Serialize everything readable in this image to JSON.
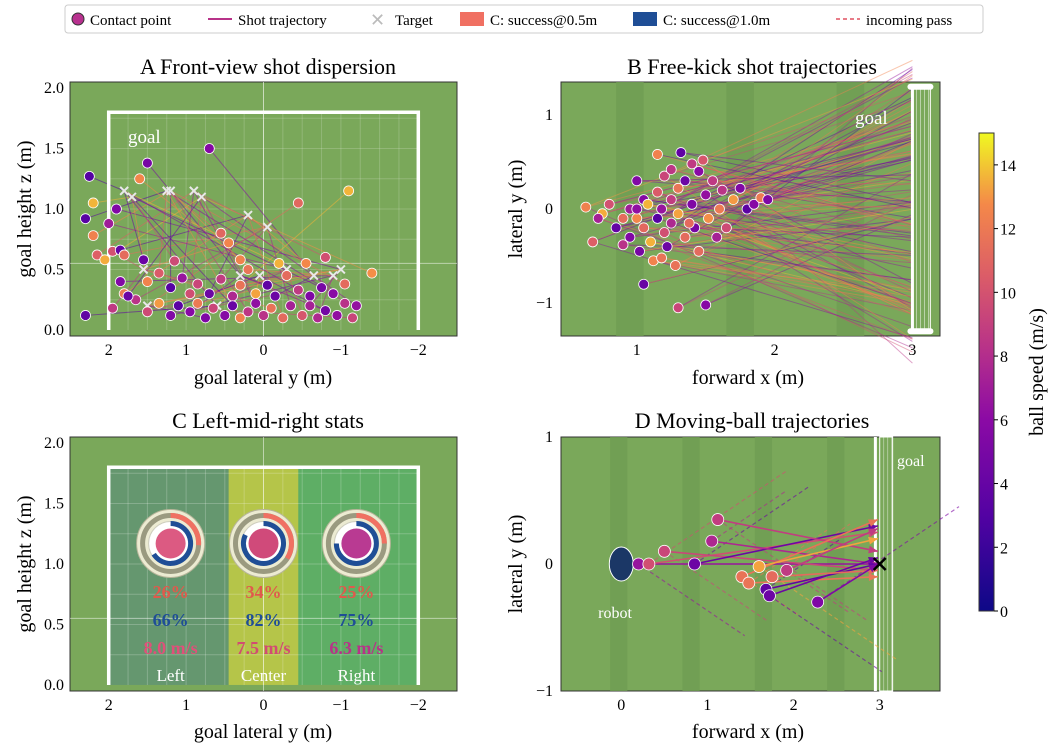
{
  "legend": {
    "contact": "Contact point",
    "traj": "Shot trajectory",
    "target": "Target",
    "s05": "C: success@0.5m",
    "s10": "C: success@1.0m",
    "incoming": "incoming pass"
  },
  "colorbar": {
    "label": "ball speed (m/s)",
    "ticks": [
      "0",
      "2",
      "4",
      "6",
      "8",
      "10",
      "12",
      "14"
    ],
    "range": [
      0,
      15
    ]
  },
  "panels": {
    "a": {
      "title": "A  Front-view shot dispersion",
      "xlabel": "goal lateral y (m)",
      "ylabel": "goal height z (m)",
      "xticks": [
        "2",
        "1",
        "0",
        "−1",
        "−2"
      ],
      "yticks": [
        "0.0",
        "0.5",
        "1.0",
        "1.5",
        "2.0"
      ],
      "goal_label": "goal"
    },
    "b": {
      "title": "B  Free-kick shot trajectories",
      "xlabel": "forward x (m)",
      "ylabel": "lateral y (m)",
      "xticks": [
        "1",
        "2",
        "3"
      ],
      "yticks": [
        "−1",
        "0",
        "1"
      ],
      "goal_label": "goal"
    },
    "c": {
      "title": "C  Left-mid-right stats",
      "xlabel": "goal lateral y (m)",
      "ylabel": "goal height z (m)",
      "xticks": [
        "2",
        "1",
        "0",
        "−1",
        "−2"
      ],
      "yticks": [
        "0.0",
        "0.5",
        "1.0",
        "1.5",
        "2.0"
      ]
    },
    "d": {
      "title": "D  Moving-ball trajectories",
      "xlabel": "forward x (m)",
      "ylabel": "lateral y (m)",
      "xticks": [
        "0",
        "1",
        "2",
        "3"
      ],
      "yticks": [
        "−1",
        "0",
        "1"
      ],
      "goal_label": "goal",
      "robot_label": "robot"
    }
  },
  "chart_data": [
    {
      "panel": "C",
      "type": "bar",
      "title": "C  Left-mid-right stats",
      "categories": [
        "Left",
        "Center",
        "Right"
      ],
      "series": [
        {
          "name": "C: success@0.5m",
          "values": [
            "26%",
            "34%",
            "25%"
          ],
          "numeric": [
            26,
            34,
            25
          ],
          "color": "#f07062"
        },
        {
          "name": "C: success@1.0m",
          "values": [
            "66%",
            "82%",
            "75%"
          ],
          "numeric": [
            66,
            82,
            75
          ],
          "color": "#1f4e96"
        }
      ],
      "speeds": [
        "8.0 m/s",
        "7.5 m/s",
        "6.3 m/s"
      ],
      "speed_values": [
        8.0,
        7.5,
        6.3
      ],
      "region_colors": [
        "#5f9277",
        "#c9cf44",
        "#55b06a"
      ]
    },
    {
      "panel": "A",
      "type": "scatter",
      "title": "A  Front-view shot dispersion",
      "xlabel": "goal lateral y (m)",
      "ylabel": "goal height z (m)",
      "xlim": [
        2.5,
        -2.5
      ],
      "ylim": [
        -0.05,
        2.05
      ],
      "goal": {
        "y": [
          2.0,
          -2.0
        ],
        "z_top": 1.8
      },
      "targets": [
        [
          1.8,
          1.15
        ],
        [
          1.7,
          1.1
        ],
        [
          1.25,
          1.15
        ],
        [
          1.2,
          1.15
        ],
        [
          0.9,
          1.15
        ],
        [
          0.8,
          1.1
        ],
        [
          1.55,
          0.5
        ],
        [
          0.2,
          0.95
        ],
        [
          -0.05,
          0.85
        ],
        [
          -0.3,
          0.5
        ],
        [
          -1.0,
          0.5
        ],
        [
          -0.9,
          0.45
        ],
        [
          0.05,
          0.45
        ],
        [
          0.3,
          0.45
        ],
        [
          -0.65,
          0.45
        ],
        [
          1.5,
          0.2
        ],
        [
          0.6,
          0.2
        ]
      ],
      "contacts": [
        [
          2.25,
          1.27
        ],
        [
          2.2,
          1.05
        ],
        [
          2.3,
          0.92
        ],
        [
          2.2,
          0.78
        ],
        [
          2.15,
          0.62
        ],
        [
          2.05,
          0.58
        ],
        [
          1.95,
          0.65
        ],
        [
          1.85,
          0.66
        ],
        [
          1.8,
          0.62
        ],
        [
          2.0,
          0.88
        ],
        [
          1.9,
          1.0
        ],
        [
          1.85,
          0.4
        ],
        [
          1.6,
          1.25
        ],
        [
          1.5,
          1.38
        ],
        [
          0.7,
          1.5
        ],
        [
          -0.45,
          1.05
        ],
        [
          -1.1,
          1.15
        ],
        [
          -0.2,
          0.55
        ],
        [
          1.5,
          0.4
        ],
        [
          1.35,
          0.47
        ],
        [
          1.2,
          0.35
        ],
        [
          1.05,
          0.43
        ],
        [
          0.95,
          0.3
        ],
        [
          0.85,
          0.38
        ],
        [
          0.7,
          0.3
        ],
        [
          0.55,
          0.42
        ],
        [
          0.4,
          0.28
        ],
        [
          0.3,
          0.37
        ],
        [
          0.2,
          0.5
        ],
        [
          0.1,
          0.3
        ],
        [
          -0.05,
          0.37
        ],
        [
          -0.15,
          0.28
        ],
        [
          -0.3,
          0.45
        ],
        [
          -0.45,
          0.33
        ],
        [
          -0.6,
          0.28
        ],
        [
          -0.75,
          0.35
        ],
        [
          -0.9,
          0.3
        ],
        [
          -1.05,
          0.38
        ],
        [
          -1.2,
          0.2
        ],
        [
          -1.4,
          0.47
        ],
        [
          1.95,
          0.18
        ],
        [
          1.8,
          0.3
        ],
        [
          1.65,
          0.25
        ],
        [
          1.5,
          0.15
        ],
        [
          1.35,
          0.22
        ],
        [
          1.2,
          0.12
        ],
        [
          1.1,
          0.2
        ],
        [
          0.95,
          0.15
        ],
        [
          0.85,
          0.22
        ],
        [
          0.75,
          0.1
        ],
        [
          0.65,
          0.18
        ],
        [
          0.5,
          0.12
        ],
        [
          0.4,
          0.2
        ],
        [
          0.3,
          0.1
        ],
        [
          0.2,
          0.15
        ],
        [
          0.1,
          0.22
        ],
        [
          0.0,
          0.12
        ],
        [
          -0.1,
          0.18
        ],
        [
          -0.25,
          0.1
        ],
        [
          -0.35,
          0.2
        ],
        [
          -0.5,
          0.12
        ],
        [
          -0.6,
          0.2
        ],
        [
          -0.7,
          0.1
        ],
        [
          -0.8,
          0.16
        ],
        [
          -0.95,
          0.12
        ],
        [
          -1.05,
          0.22
        ],
        [
          -1.15,
          0.1
        ],
        [
          2.3,
          0.12
        ],
        [
          1.55,
          0.58
        ],
        [
          1.15,
          0.57
        ],
        [
          0.55,
          0.8
        ],
        [
          0.3,
          0.58
        ],
        [
          -0.8,
          0.6
        ],
        [
          1.75,
          0.28
        ],
        [
          0.45,
          0.72
        ],
        [
          -0.55,
          0.55
        ]
      ]
    },
    {
      "panel": "B",
      "type": "line",
      "title": "B  Free-kick shot trajectories",
      "xlabel": "forward x (m)",
      "ylabel": "lateral y (m)",
      "xlim": [
        0.45,
        3.2
      ],
      "ylim": [
        -1.35,
        1.35
      ],
      "goal": {
        "x": 3.0,
        "y": [
          -1.3,
          1.3
        ]
      },
      "contacts": [
        [
          0.63,
          0.02
        ],
        [
          0.68,
          -0.35
        ],
        [
          0.75,
          -0.05
        ],
        [
          0.8,
          0.05
        ],
        [
          0.85,
          -0.2
        ],
        [
          0.9,
          -0.1
        ],
        [
          0.95,
          0.0
        ],
        [
          0.95,
          -0.3
        ],
        [
          1.0,
          0.3
        ],
        [
          1.0,
          -0.1
        ],
        [
          1.02,
          -0.45
        ],
        [
          1.05,
          0.1
        ],
        [
          1.05,
          -0.2
        ],
        [
          1.08,
          0.05
        ],
        [
          1.1,
          -0.35
        ],
        [
          1.12,
          -0.55
        ],
        [
          1.15,
          0.18
        ],
        [
          1.15,
          -0.1
        ],
        [
          1.18,
          0.0
        ],
        [
          1.2,
          -0.25
        ],
        [
          1.2,
          0.35
        ],
        [
          1.22,
          -0.4
        ],
        [
          1.25,
          0.1
        ],
        [
          1.25,
          -0.15
        ],
        [
          1.28,
          -0.6
        ],
        [
          1.3,
          0.22
        ],
        [
          1.3,
          -0.05
        ],
        [
          1.32,
          0.6
        ],
        [
          1.35,
          0.3
        ],
        [
          1.35,
          -0.3
        ],
        [
          1.4,
          0.48
        ],
        [
          1.4,
          0.05
        ],
        [
          1.42,
          -0.2
        ],
        [
          1.45,
          0.4
        ],
        [
          1.45,
          -0.45
        ],
        [
          1.5,
          0.15
        ],
        [
          1.52,
          -0.1
        ],
        [
          1.55,
          0.3
        ],
        [
          1.6,
          0.0
        ],
        [
          1.62,
          0.2
        ],
        [
          1.65,
          -0.2
        ],
        [
          1.7,
          0.1
        ],
        [
          1.75,
          0.22
        ],
        [
          1.8,
          0.0
        ],
        [
          1.85,
          0.05
        ],
        [
          1.9,
          0.12
        ],
        [
          1.95,
          0.1
        ],
        [
          1.3,
          -1.05
        ],
        [
          1.5,
          -1.02
        ],
        [
          1.05,
          -0.8
        ],
        [
          1.15,
          0.58
        ],
        [
          1.25,
          0.42
        ],
        [
          1.0,
          0.0
        ],
        [
          0.9,
          -0.38
        ],
        [
          1.18,
          -0.52
        ],
        [
          1.38,
          -0.15
        ],
        [
          0.72,
          -0.1
        ],
        [
          1.48,
          0.52
        ],
        [
          1.58,
          -0.3
        ]
      ]
    },
    {
      "panel": "D",
      "type": "line",
      "title": "D  Moving-ball trajectories",
      "xlabel": "forward x (m)",
      "ylabel": "lateral y (m)",
      "xlim": [
        -0.7,
        3.7
      ],
      "ylim": [
        -1.0,
        1.0
      ],
      "goal": {
        "x": 3.0
      },
      "robot": [
        0.0,
        0.0
      ],
      "target": [
        3.0,
        0.0
      ],
      "contacts": [
        [
          0.2,
          0.0
        ],
        [
          0.32,
          0.0
        ],
        [
          0.5,
          0.1
        ],
        [
          0.85,
          0.0
        ],
        [
          1.12,
          0.35
        ],
        [
          1.05,
          0.18
        ],
        [
          1.4,
          -0.1
        ],
        [
          1.48,
          -0.15
        ],
        [
          1.6,
          -0.02
        ],
        [
          1.68,
          -0.2
        ],
        [
          1.72,
          -0.25
        ],
        [
          1.75,
          -0.1
        ],
        [
          1.92,
          -0.05
        ],
        [
          2.28,
          -0.3
        ]
      ]
    }
  ]
}
